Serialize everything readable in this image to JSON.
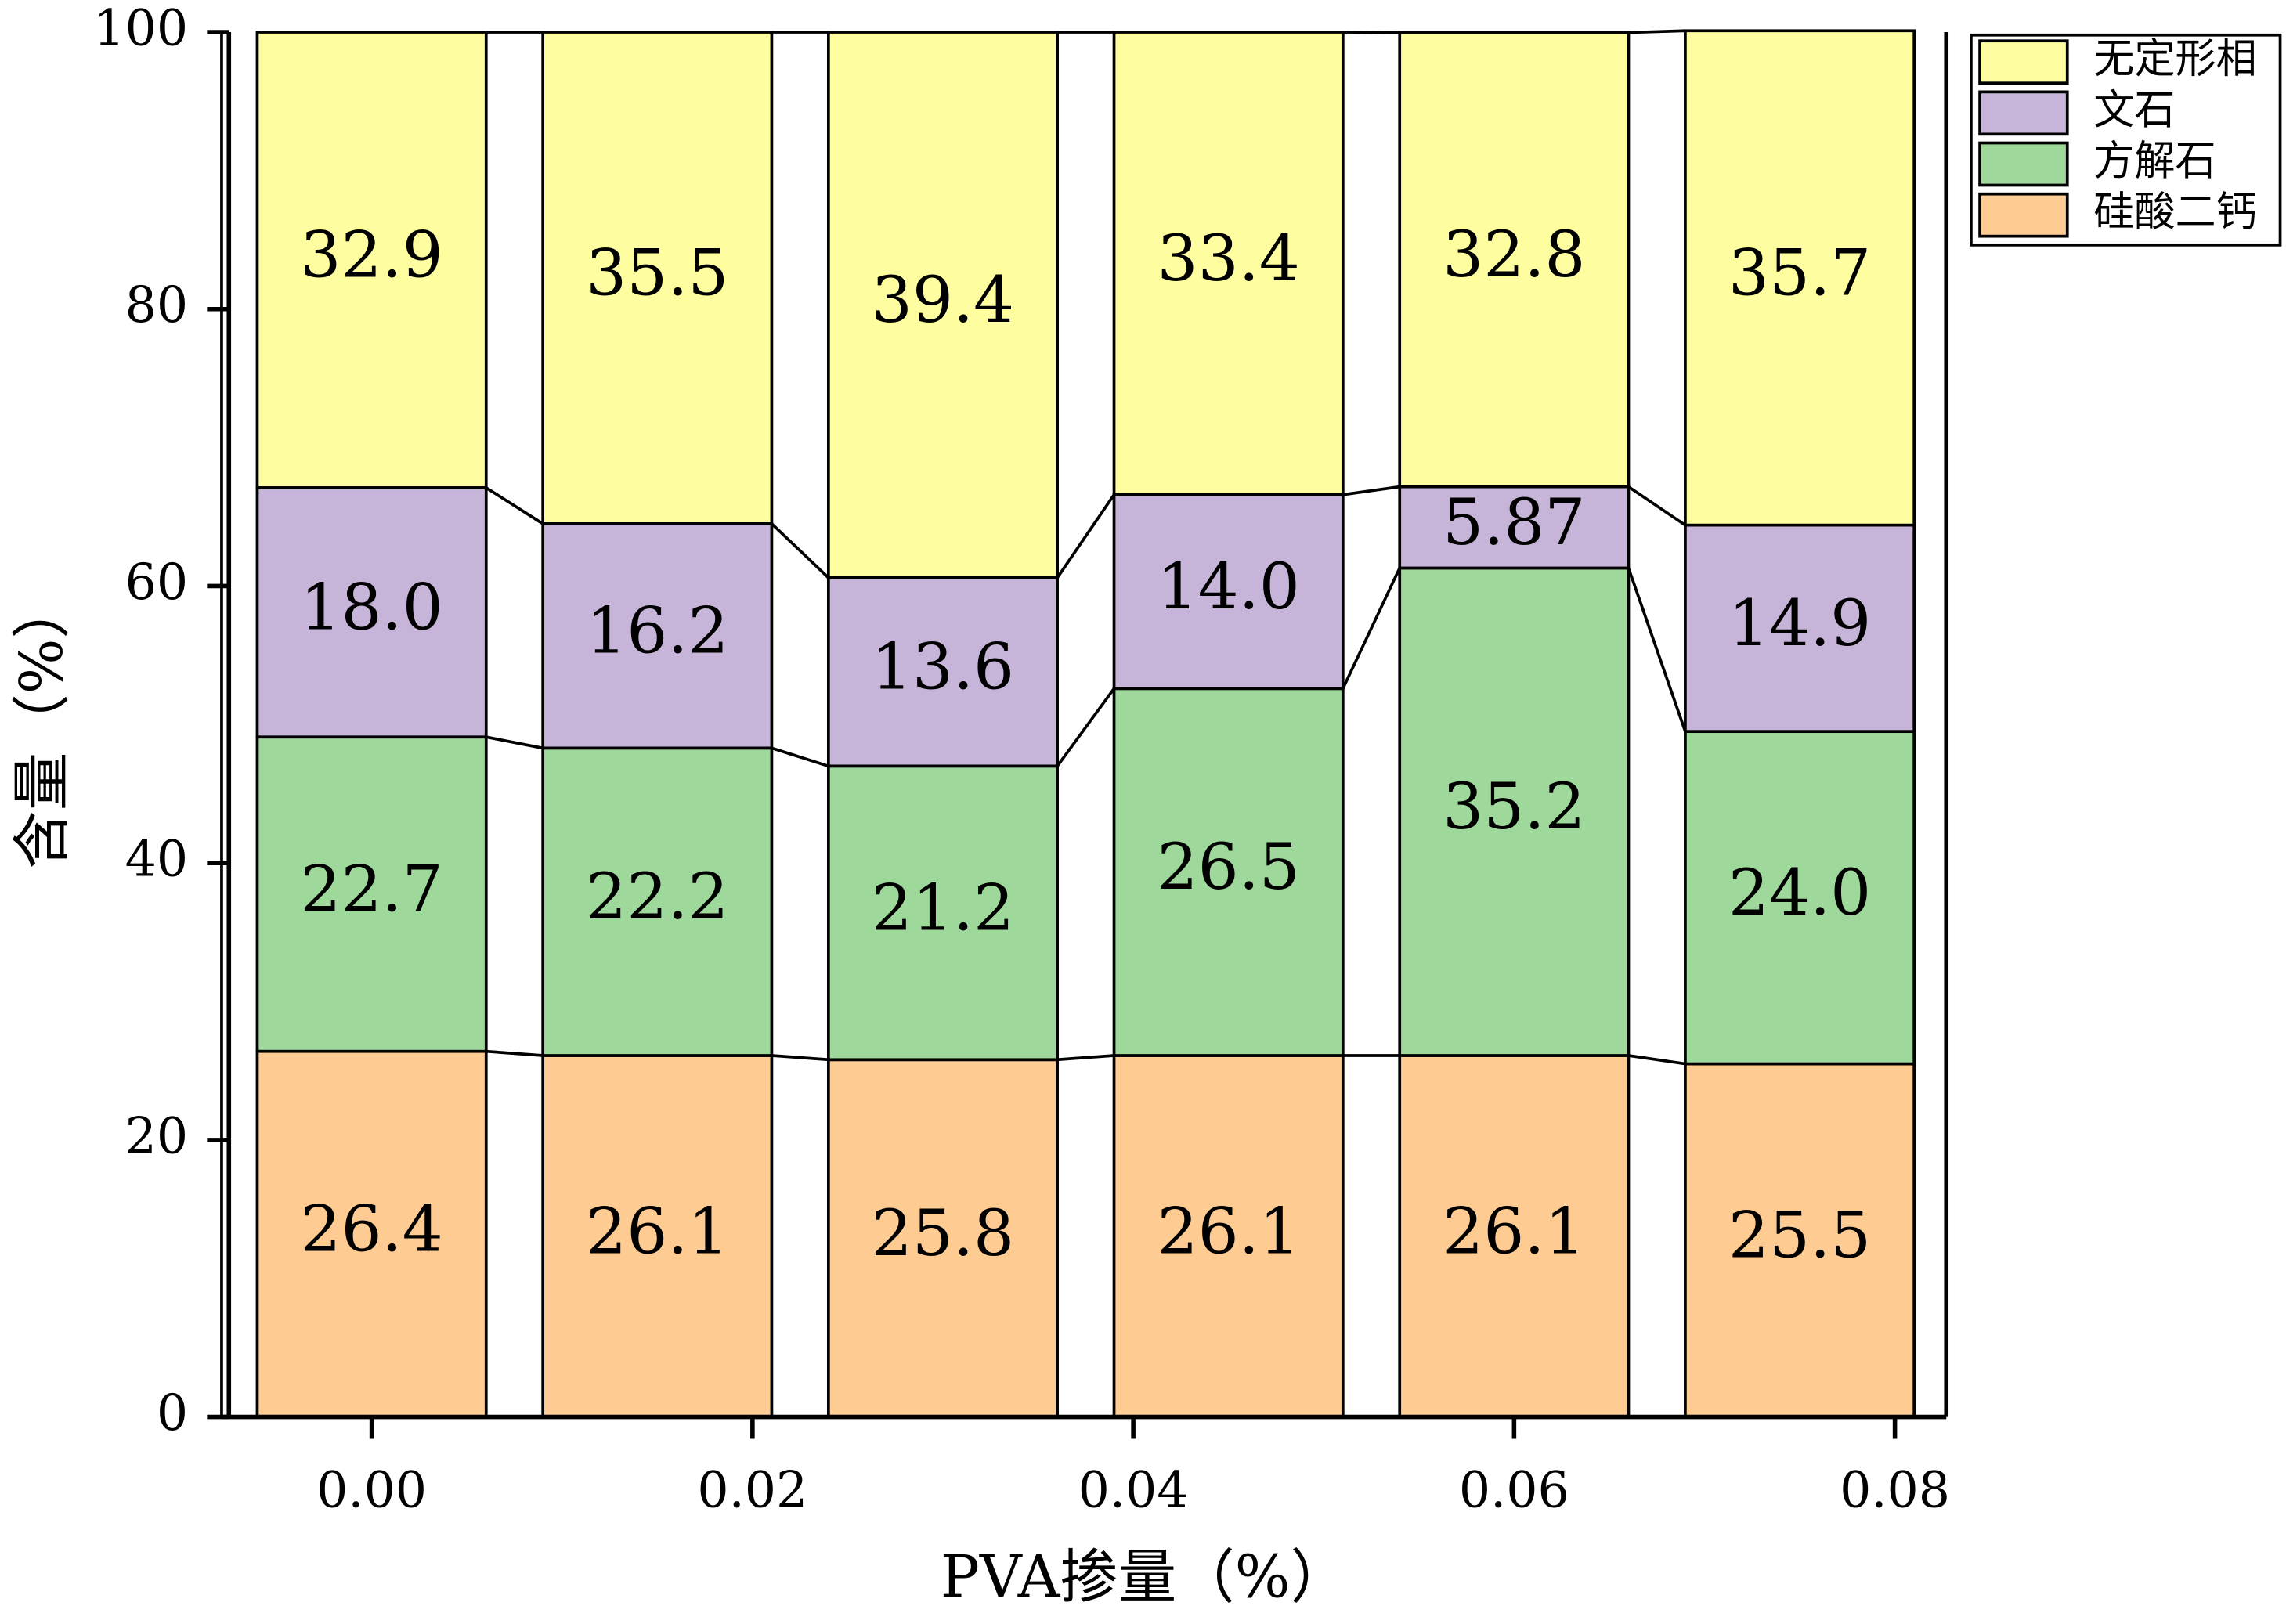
{
  "chart_data": {
    "type": "stacked_bar",
    "x_label": "PVA掺量（%）",
    "y_label": "含量（%）",
    "x": [
      0,
      0.015,
      0.03,
      0.045,
      0.06,
      0.075
    ],
    "xlim": [
      -0.0075,
      0.0827
    ],
    "xticks": [
      {
        "value": 0,
        "label": "0.00"
      },
      {
        "value": 0.02,
        "label": "0.02"
      },
      {
        "value": 0.04,
        "label": "0.04"
      },
      {
        "value": 0.06,
        "label": "0.06"
      },
      {
        "value": 0.08,
        "label": "0.08"
      }
    ],
    "ylim": [
      0,
      100
    ],
    "yticks": [
      0,
      20,
      40,
      60,
      80,
      100
    ],
    "legend": "top-right",
    "series": [
      {
        "name": "硅酸二钙",
        "color": "#fecc92",
        "values": [
          26.4,
          26.1,
          25.8,
          26.1,
          26.1,
          25.5
        ]
      },
      {
        "name": "方解石",
        "color": "#9ed89a",
        "values": [
          22.7,
          22.2,
          21.2,
          26.5,
          35.2,
          24.0
        ],
        "value_labels": [
          "22.7",
          "22.2",
          "21.2",
          "26.5",
          "35.2",
          "24.0"
        ]
      },
      {
        "name": "文石",
        "color": "#c6b5d8",
        "values": [
          18.0,
          16.2,
          13.6,
          14.0,
          5.87,
          14.9
        ],
        "value_labels": [
          "18.0",
          "16.2",
          "13.6",
          "14.0",
          "5.87",
          "14.9"
        ]
      },
      {
        "name": "无定形相",
        "color": "#fefea0",
        "values": [
          32.9,
          35.5,
          39.4,
          33.4,
          32.8,
          35.7
        ]
      }
    ]
  }
}
